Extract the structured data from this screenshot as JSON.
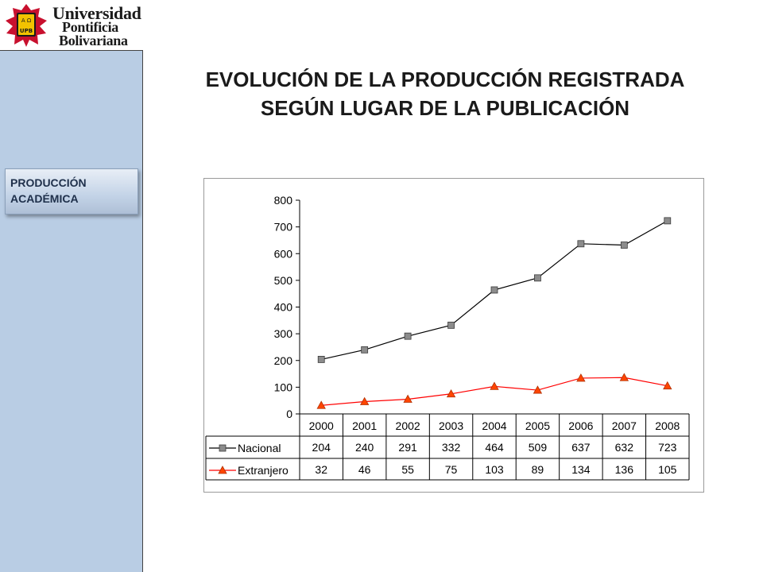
{
  "logo": {
    "line1": "Universidad",
    "line2": "Pontificia",
    "line3": "Bolivariana",
    "shield_text": "UPB",
    "shield_glyphs": "Α Ω"
  },
  "sidebar": {
    "section_label_1": "PRODUCCIÓN",
    "section_label_2": "ACADÉMICA"
  },
  "page": {
    "title_line1": "EVOLUCIÓN DE LA PRODUCCIÓN REGISTRADA",
    "title_line2": "SEGÚN LUGAR DE LA PUBLICACIÓN"
  },
  "colors": {
    "sidebar_bg": "#b9cde4",
    "nacional_marker": "#8c8c8c",
    "nacional_line": "#000000",
    "extranjero_marker": "#ff4500",
    "extranjero_line": "#ff0000"
  },
  "chart_data": {
    "type": "line",
    "title": "",
    "xlabel": "",
    "ylabel": "",
    "ylim": [
      0,
      800
    ],
    "yticks": [
      0,
      100,
      200,
      300,
      400,
      500,
      600,
      700,
      800
    ],
    "grid": false,
    "legend": "data-table-left",
    "categories": [
      "2000",
      "2001",
      "2002",
      "2003",
      "2004",
      "2005",
      "2006",
      "2007",
      "2008"
    ],
    "series": [
      {
        "name": "Nacional",
        "marker": "square",
        "values": [
          204,
          240,
          291,
          332,
          464,
          509,
          637,
          632,
          723
        ]
      },
      {
        "name": "Extranjero",
        "marker": "triangle",
        "values": [
          32,
          46,
          55,
          75,
          103,
          89,
          134,
          136,
          105
        ]
      }
    ]
  }
}
